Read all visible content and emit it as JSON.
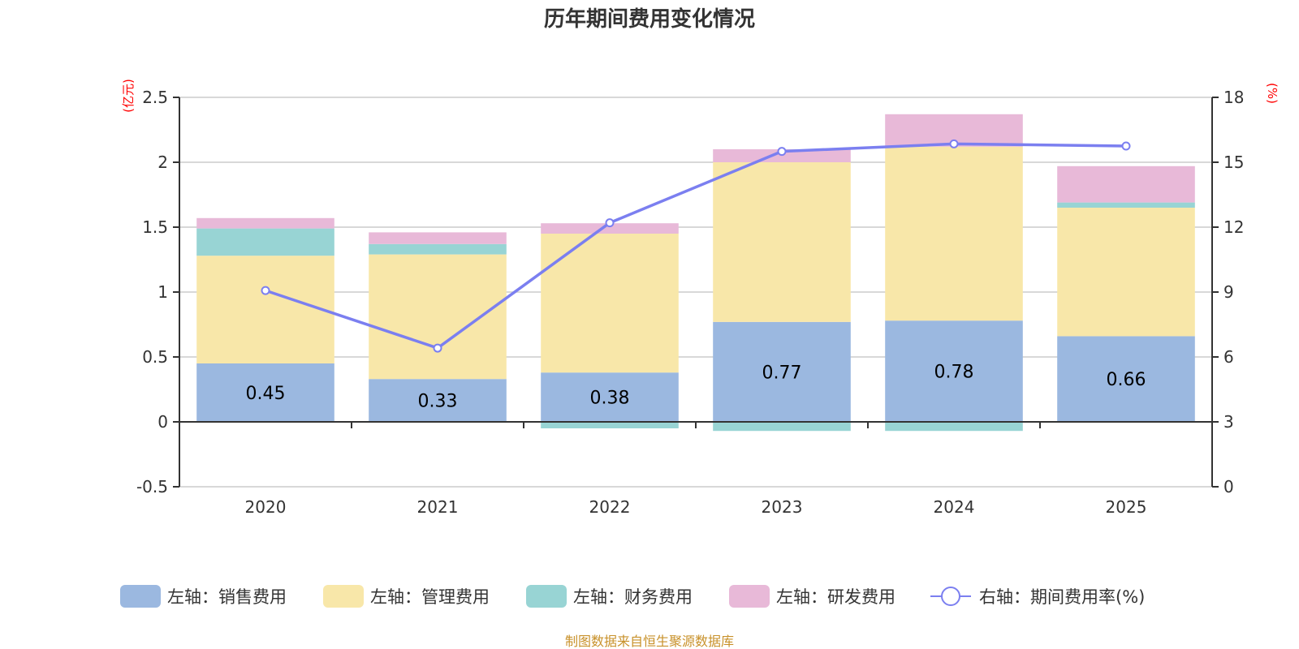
{
  "chart_data": {
    "type": "bar",
    "stacked": true,
    "title": "历年期间费用变化情况",
    "xlabel": "",
    "ylabel_left": "(亿元)",
    "ylabel_right": "(%)",
    "categories": [
      "2020",
      "2021",
      "2022",
      "2023",
      "2024",
      "2025"
    ],
    "ylim_left": [
      -0.5,
      2.5
    ],
    "yticks_left": [
      "-0.5",
      "0",
      "0.5",
      "1",
      "1.5",
      "2",
      "2.5"
    ],
    "ylim_right": [
      0,
      18
    ],
    "yticks_right": [
      "0",
      "3",
      "6",
      "9",
      "12",
      "15",
      "18"
    ],
    "grid": true,
    "legend_position": "bottom",
    "series": [
      {
        "name": "左轴：销售费用",
        "axis": "left",
        "kind": "bar",
        "color": "#9bb8e0",
        "values": [
          0.45,
          0.33,
          0.38,
          0.77,
          0.78,
          0.66
        ],
        "labels": [
          "0.45",
          "0.33",
          "0.38",
          "0.77",
          "0.78",
          "0.66"
        ]
      },
      {
        "name": "左轴：管理费用",
        "axis": "left",
        "kind": "bar",
        "color": "#f8e7a9",
        "values": [
          0.83,
          0.96,
          1.07,
          1.23,
          1.34,
          0.99
        ]
      },
      {
        "name": "左轴：财务费用",
        "axis": "left",
        "kind": "bar",
        "color": "#98d4d4",
        "values": [
          0.21,
          0.08,
          -0.05,
          -0.07,
          -0.07,
          0.04
        ]
      },
      {
        "name": "左轴：研发费用",
        "axis": "left",
        "kind": "bar",
        "color": "#e8b9d8",
        "values": [
          0.08,
          0.09,
          0.08,
          0.1,
          0.25,
          0.28
        ]
      },
      {
        "name": "右轴：期间费用率(%)",
        "axis": "right",
        "kind": "line",
        "color": "#7b7ff0",
        "values": [
          9.07,
          6.41,
          12.2,
          15.5,
          15.85,
          15.75
        ]
      }
    ],
    "source": "制图数据来自恒生聚源数据库"
  }
}
